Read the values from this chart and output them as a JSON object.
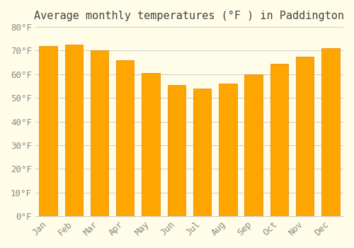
{
  "title": "Average monthly temperatures (°F ) in Paddington",
  "months": [
    "Jan",
    "Feb",
    "Mar",
    "Apr",
    "May",
    "Jun",
    "Jul",
    "Aug",
    "Sep",
    "Oct",
    "Nov",
    "Dec"
  ],
  "values": [
    72,
    72.5,
    70,
    66,
    60.5,
    55.5,
    54,
    56,
    60,
    64.5,
    67.5,
    71
  ],
  "bar_color": "#FFA500",
  "bar_edge_color": "#E08000",
  "background_color": "#FFFDE7",
  "ylim": [
    0,
    80
  ],
  "yticks": [
    0,
    10,
    20,
    30,
    40,
    50,
    60,
    70,
    80
  ],
  "ytick_labels": [
    "0°F",
    "10°F",
    "20°F",
    "30°F",
    "40°F",
    "50°F",
    "60°F",
    "70°F",
    "80°F"
  ],
  "title_fontsize": 11,
  "tick_fontsize": 9,
  "grid_color": "#cccccc",
  "font_family": "monospace"
}
